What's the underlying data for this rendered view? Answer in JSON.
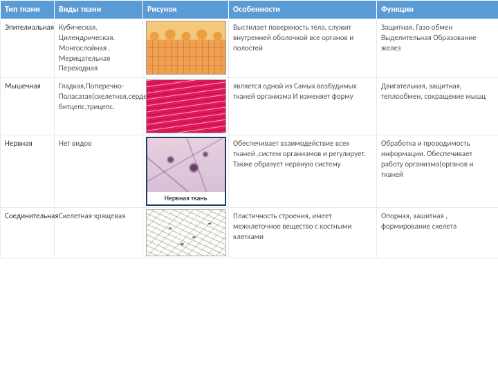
{
  "headers": [
    "Тип ткани",
    "Виды ткани",
    "Рисунок",
    "Особенности",
    "Функции"
  ],
  "rows": [
    {
      "type": "Эпителиальная",
      "kinds": "Кубическая. Цилендрическая. Монгослойная . Мерицательная Переходная",
      "features": "Выстилает поверхность тела, служит внутренней оболочкой все органов и полостей",
      "functions": "Защитная, Газо обмен Выделительная Образование желез",
      "img": "epi"
    },
    {
      "type": "Мышечная",
      "kinds": "Гладкая,Поперечно-Поласатая(скелетнвя,сердечная, битцепс,трицепс.",
      "features": "является одной из Самых возбудимых тканей организма И изменяет форму",
      "functions": "Двигательная, защитная, теплообмен, сокращение мышц",
      "img": "musc"
    },
    {
      "type": "Нервная",
      "kinds": "Нет видов",
      "features": "Обеспечивает взаимодействие всех тканей ,систем организмов и регулирует. Также образует нервную систему",
      "functions": "Обработка и проводимость информации. Обеспечивает работу организма(органов и тканей",
      "img": "nerv",
      "caption": "Нервная ткань"
    },
    {
      "type": "Соединительная",
      "kinds": "Скелетная-хрящевая",
      "features": "Пластичность строения, имеет межклеточное вещество с костными клетками",
      "functions": "Опорная, зашитная , формирование скелета",
      "img": "conn"
    }
  ],
  "style": {
    "header_bg": "#5b9bd5",
    "header_color": "#ffffff",
    "cell_border": "#e8e8e8",
    "text_color": "#555555",
    "font_size_header": 12,
    "font_size_cell": 11
  }
}
